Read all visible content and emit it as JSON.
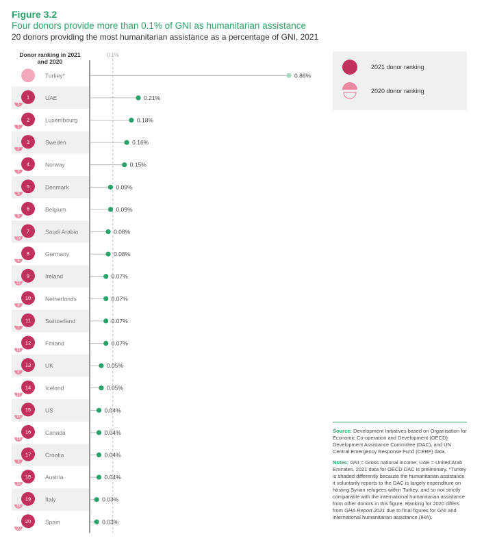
{
  "header": {
    "figure_number": "Figure 3.2",
    "title": "Four donors provide more than 0.1% of GNI as humanitarian assistance",
    "subtitle": "20 donors providing the most humanitarian assistance as a percentage of GNI, 2021"
  },
  "ranking_header": "Donor ranking in 2021 and 2020",
  "legend": {
    "rank_2021_label": "2021 donor ranking",
    "rank_2020_label": "2020 donor ranking"
  },
  "notes": {
    "source_label": "Source:",
    "source_text": "Development Initiatives based on Organisation for Economic Co-operation and Development (OECD) Development Assistance Committee (DAC), and UN Central Emergency Response Fund (CERF) data.",
    "notes_label": "Notes:",
    "notes_text_1": "GNI = Gross national income; UAE = United Arab Emirates. 2021 data for OECD DAC is preliminary. *Turkey is shaded differently because the humanitarian assistance it voluntarily reports to the DAC is largely expenditure on hosting Syrian refugees within Turkey, and so not strictly comparable with the international humanitarian assistance from other donors in this figure. Ranking for 2020 differs from ",
    "notes_ref": "GHA Report 2021",
    "notes_text_2": " due to final figures for GNI and international humanitarian assistance (IHA)."
  },
  "colors": {
    "green": "#2aa36b",
    "green_light": "#a7dcc0",
    "rank_2021": "#c2305e",
    "rank_2020": "#e98aa2",
    "turkey": "#f2a9bb",
    "row_band": "#f0f0f0"
  },
  "chart_data": {
    "type": "lollipop",
    "reference_line": {
      "value": 0.1,
      "label": "0.1%"
    },
    "xlim": [
      0,
      0.86
    ],
    "unit": "%",
    "donors": [
      {
        "name": "Turkey*",
        "value": 0.86,
        "label": "0.86%",
        "rank_2021": null,
        "rank_2020": null
      },
      {
        "name": "UAE",
        "value": 0.21,
        "label": "0.21%",
        "rank_2021": 1,
        "rank_2020": 5
      },
      {
        "name": "Luxembourg",
        "value": 0.18,
        "label": "0.18%",
        "rank_2021": 2,
        "rank_2020": 1
      },
      {
        "name": "Sweden",
        "value": 0.16,
        "label": "0.16%",
        "rank_2021": 3,
        "rank_2020": 2
      },
      {
        "name": "Norway",
        "value": 0.15,
        "label": "0.15%",
        "rank_2021": 4,
        "rank_2020": 3
      },
      {
        "name": "Denmark",
        "value": 0.09,
        "label": "0.09%",
        "rank_2021": 5,
        "rank_2020": 4
      },
      {
        "name": "Belgium",
        "value": 0.09,
        "label": "0.09%",
        "rank_2021": 6,
        "rank_2020": 9
      },
      {
        "name": "Saudi Arabia",
        "value": 0.08,
        "label": "0.08%",
        "rank_2021": 7,
        "rank_2020": 14
      },
      {
        "name": "Germany",
        "value": 0.08,
        "label": "0.08%",
        "rank_2021": 8,
        "rank_2020": 6
      },
      {
        "name": "Ireland",
        "value": 0.07,
        "label": "0.07%",
        "rank_2021": 9,
        "rank_2020": 12
      },
      {
        "name": "Netherlands",
        "value": 0.07,
        "label": "0.07%",
        "rank_2021": 10,
        "rank_2020": 8
      },
      {
        "name": "Switzerland",
        "value": 0.07,
        "label": "0.07%",
        "rank_2021": 11,
        "rank_2020": 7
      },
      {
        "name": "Finland",
        "value": 0.07,
        "label": "0.07%",
        "rank_2021": 12,
        "rank_2020": 11
      },
      {
        "name": "UK",
        "value": 0.05,
        "label": "0.05%",
        "rank_2021": 13,
        "rank_2020": 6
      },
      {
        "name": "Iceland",
        "value": 0.05,
        "label": "0.05%",
        "rank_2021": 14,
        "rank_2020": 17
      },
      {
        "name": "US",
        "value": 0.04,
        "label": "0.04%",
        "rank_2021": 15,
        "rank_2020": 15
      },
      {
        "name": "Canada",
        "value": 0.04,
        "label": "0.04%",
        "rank_2021": 16,
        "rank_2020": 13
      },
      {
        "name": "Croatia",
        "value": 0.04,
        "label": "0.04%",
        "rank_2021": 17,
        "rank_2020": 3
      },
      {
        "name": "Austria",
        "value": 0.04,
        "label": "0.04%",
        "rank_2021": 18,
        "rank_2020": 18
      },
      {
        "name": "Italy",
        "value": 0.03,
        "label": "0.03%",
        "rank_2021": 19,
        "rank_2020": 19
      },
      {
        "name": "Spain",
        "value": 0.03,
        "label": "0.03%",
        "rank_2021": 20,
        "rank_2020": 20
      }
    ]
  }
}
